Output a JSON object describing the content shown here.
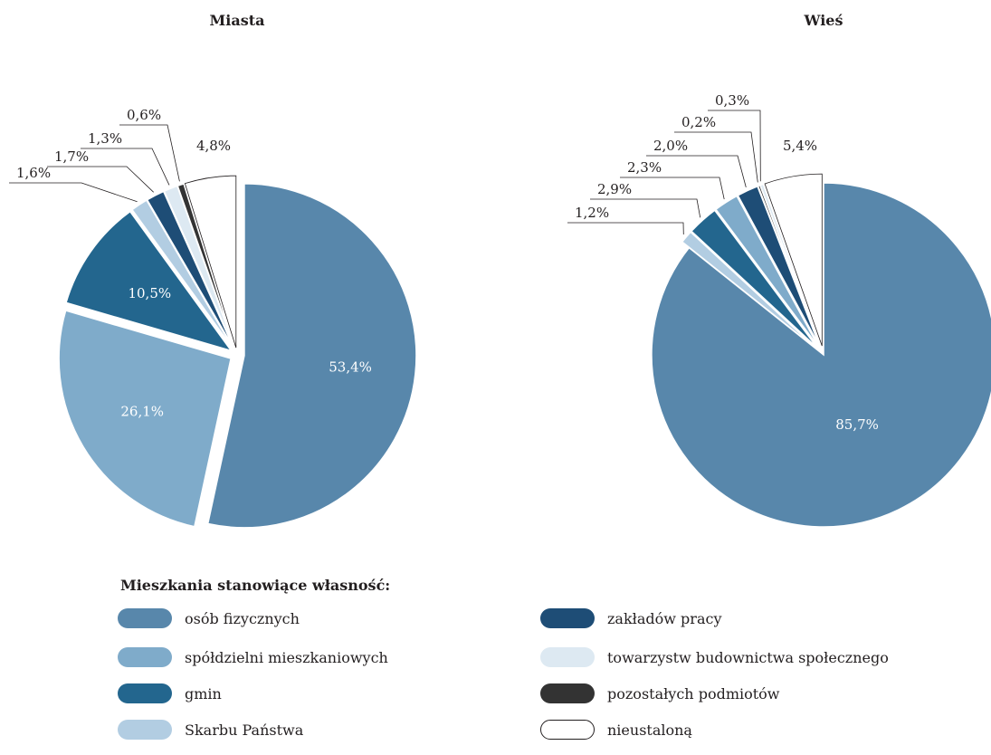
{
  "colors": [
    "#5887ab",
    "#7fabca",
    "#23668e",
    "#b2cde2",
    "#1e4d76",
    "#dde9f2",
    "#333333",
    "#ffffff"
  ],
  "chart_data": [
    {
      "type": "pie",
      "title": "Miasta",
      "slices": [
        {
          "name": "osób fizycznych",
          "value": 53.4,
          "label": "53,4%"
        },
        {
          "name": "spółdzielni mieszkaniowych",
          "value": 26.1,
          "label": "26,1%"
        },
        {
          "name": "gmin",
          "value": 10.5,
          "label": "10,5%"
        },
        {
          "name": "Skarbu Państwa",
          "value": 1.6,
          "label": "1,6%"
        },
        {
          "name": "zakładów pracy",
          "value": 1.7,
          "label": "1,7%"
        },
        {
          "name": "towarzystw budownictwa społecznego",
          "value": 1.3,
          "label": "1,3%"
        },
        {
          "name": "pozostałych podmiotów",
          "value": 0.6,
          "label": "0,6%"
        },
        {
          "name": "nieustaloną",
          "value": 4.8,
          "label": "4,8%"
        }
      ]
    },
    {
      "type": "pie",
      "title": "Wieś",
      "slices": [
        {
          "name": "osób fizycznych",
          "value": 85.7,
          "label": "85,7%"
        },
        {
          "name": "Skarbu Państwa",
          "value": 1.2,
          "label": "1,2%"
        },
        {
          "name": "gmin",
          "value": 2.9,
          "label": "2,9%"
        },
        {
          "name": "spółdzielni mieszkaniowych",
          "value": 2.3,
          "label": "2,3%"
        },
        {
          "name": "zakładów pracy",
          "value": 2.0,
          "label": "2,0%"
        },
        {
          "name": "pozostałych podmiotów",
          "value": 0.2,
          "label": "0,2%"
        },
        {
          "name": "towarzystw budownictwa społecznego",
          "value": 0.3,
          "label": "0,3%"
        },
        {
          "name": "nieustaloną",
          "value": 5.4,
          "label": "5,4%"
        }
      ]
    }
  ],
  "legend": {
    "title": "Mieszkania stanowiące własność:",
    "items": [
      {
        "label": "osób fizycznych",
        "color": "#5887ab"
      },
      {
        "label": "spółdzielni mieszkaniowych",
        "color": "#7fabca"
      },
      {
        "label": "gmin",
        "color": "#23668e"
      },
      {
        "label": "Skarbu Państwa",
        "color": "#b2cde2"
      },
      {
        "label": "zakładów pracy",
        "color": "#1e4d76"
      },
      {
        "label": "towarzystw budownictwa społecznego",
        "color": "#dde9f2"
      },
      {
        "label": "pozostałych podmiotów",
        "color": "#333333"
      },
      {
        "label": "nieustaloną",
        "color": "#ffffff"
      }
    ]
  }
}
